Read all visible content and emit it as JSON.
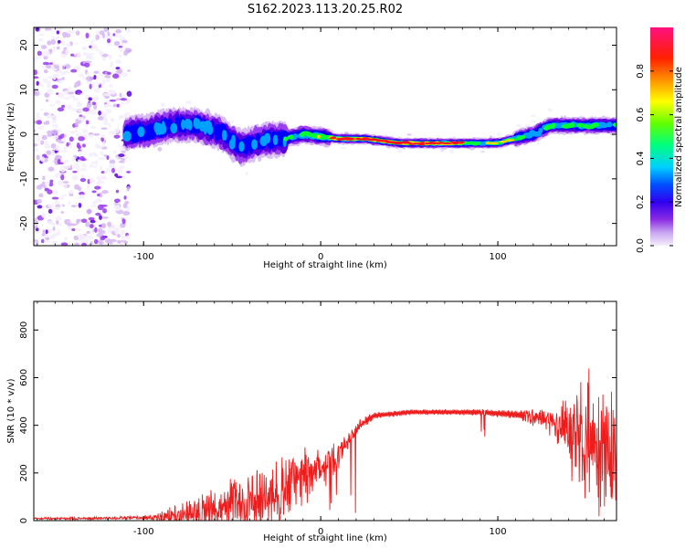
{
  "title": "S162.2023.113.20.25.R02",
  "colors": {
    "axis": "#000000",
    "snr_line": "#ee1c1c",
    "colormap": [
      "#f4eefb",
      "#d7b9f3",
      "#9a3df0",
      "#5b00e0",
      "#0000ff",
      "#00a0ff",
      "#00f0d0",
      "#00ff30",
      "#c8ff00",
      "#ffd800",
      "#ff7a00",
      "#ff1020",
      "#ff1080"
    ]
  },
  "chart_data": [
    {
      "type": "heatmap",
      "xlabel": "Height of straight line (km)",
      "ylabel": "Frequency (Hz)",
      "xlim": [
        -162,
        167
      ],
      "ylim": [
        -25,
        24
      ],
      "xticks": [
        -100,
        0,
        100
      ],
      "yticks": [
        -20,
        -10,
        0,
        10,
        20
      ],
      "grid": false,
      "ridge": {
        "x": [
          -115,
          -100,
          -85,
          -70,
          -55,
          -45,
          -38,
          -30,
          -20,
          -10,
          0,
          10,
          25,
          45,
          65,
          80,
          90,
          100,
          110,
          120,
          130,
          140,
          150,
          160,
          167
        ],
        "frequency": [
          0,
          0.5,
          2,
          2,
          0,
          -3,
          -2,
          -1,
          -1,
          0,
          -0.5,
          -1,
          -1,
          -2,
          -2,
          -2,
          -2,
          -2,
          -1,
          0,
          2,
          2,
          2,
          2,
          2
        ]
      },
      "colorbar": {
        "label": "Normalized spectral amplitude",
        "ticks": [
          0.0,
          0.2,
          0.4,
          0.6,
          0.8
        ],
        "tick_labels": [
          "0.0",
          "0.2",
          "0.4",
          "0.6",
          "0.8"
        ],
        "range": [
          0,
          1
        ]
      }
    },
    {
      "type": "line",
      "xlabel": "Height of straight line (km)",
      "ylabel": "SNR (10 * v/v)",
      "xlim": [
        -162,
        167
      ],
      "ylim": [
        0,
        920
      ],
      "xticks": [
        -100,
        0,
        100
      ],
      "yticks": [
        0,
        200,
        400,
        600,
        800
      ],
      "grid": false,
      "envelope": {
        "x": [
          -162,
          -120,
          -100,
          -90,
          -80,
          -60,
          -40,
          -25,
          -10,
          0,
          10,
          20,
          30,
          50,
          70,
          90,
          110,
          125,
          140,
          150,
          160,
          167
        ],
        "baseline": [
          8,
          10,
          12,
          15,
          25,
          50,
          80,
          100,
          180,
          230,
          270,
          390,
          440,
          455,
          455,
          455,
          445,
          430,
          380,
          330,
          290,
          270
        ],
        "amplitude": [
          4,
          6,
          8,
          20,
          50,
          80,
          110,
          140,
          120,
          90,
          60,
          25,
          12,
          10,
          10,
          12,
          15,
          40,
          150,
          260,
          250,
          200
        ]
      }
    }
  ]
}
